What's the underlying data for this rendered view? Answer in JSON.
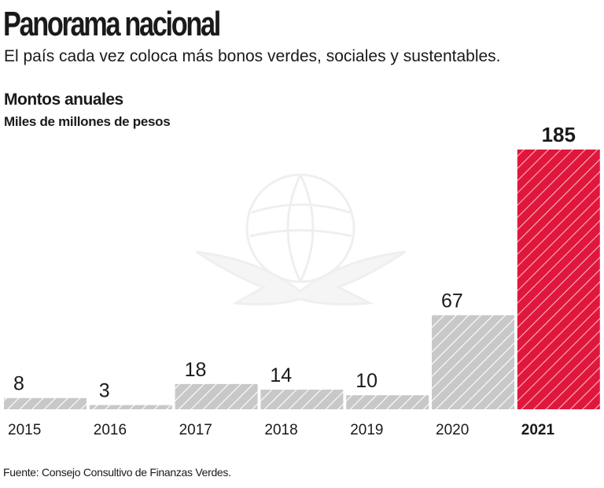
{
  "title": "Panorama nacional",
  "subtitle": "El país cada vez coloca más bonos verdes, sociales y sustentables.",
  "source": "Fuente: Consejo Consultivo de Finanzas Verdes.",
  "chart_data": {
    "type": "bar",
    "title": "Montos anuales",
    "ylabel": "Miles de millones de pesos",
    "categories": [
      "2015",
      "2016",
      "2017",
      "2018",
      "2019",
      "2020",
      "2021"
    ],
    "values": [
      8,
      3,
      18,
      14,
      10,
      67,
      185
    ],
    "ylim": [
      0,
      185
    ],
    "grid": false,
    "highlight_category": "2021",
    "colors": {
      "default": "#c8c8c8",
      "highlight": "#e0173d",
      "hatch": "#ffffff"
    }
  }
}
